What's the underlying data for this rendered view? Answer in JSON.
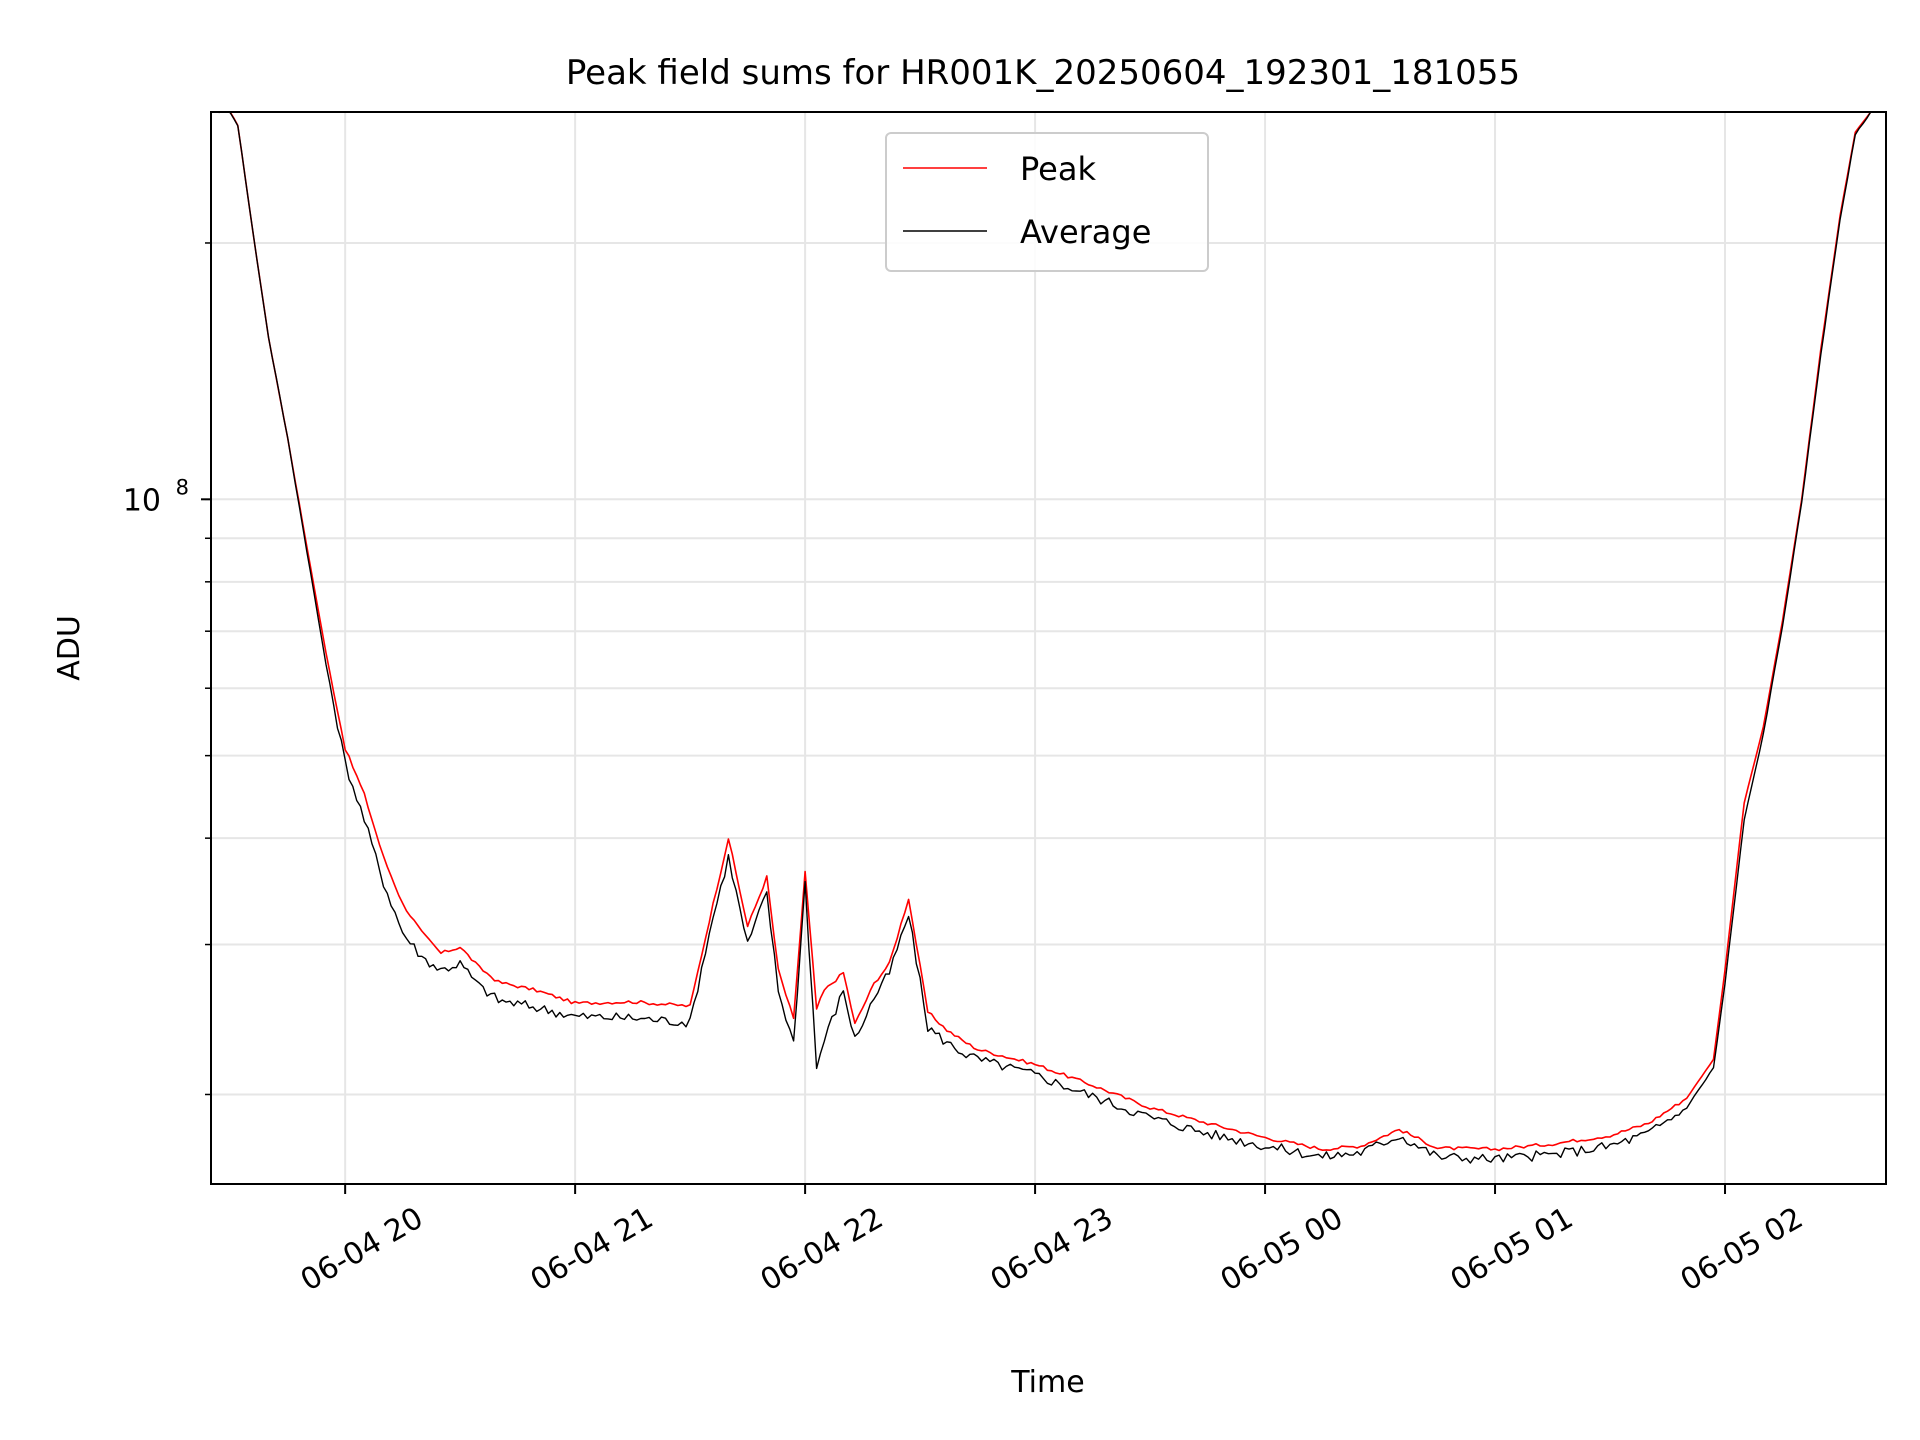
{
  "chart_data": {
    "type": "line",
    "title": "Peak field sums for HR001K_20250604_192301_181055",
    "xlabel": "Time",
    "ylabel": "ADU",
    "yscale": "log",
    "xlim": [
      "2025-06-04 19:25",
      "2025-06-05 02:42"
    ],
    "ylim": [
      15700000,
      285000000
    ],
    "ytick_labels": [
      {
        "value": 100000000,
        "base": "10",
        "exp": "8"
      }
    ],
    "xtick_labels": [
      "06-04 20",
      "06-04 21",
      "06-04 22",
      "06-04 23",
      "06-05 00",
      "06-05 01",
      "06-05 02"
    ],
    "xtick_values": [
      "2025-06-04 20:00",
      "2025-06-04 21:00",
      "2025-06-04 22:00",
      "2025-06-04 23:00",
      "2025-06-05 00:00",
      "2025-06-05 01:00",
      "2025-06-05 02:00"
    ],
    "grid": true,
    "legend_position": "upper center",
    "series": [
      {
        "name": "Peak",
        "color": "#ff0000",
        "x": [
          "2025-06-04 19:27",
          "2025-06-04 19:30",
          "2025-06-04 19:32",
          "2025-06-04 19:36",
          "2025-06-04 19:40",
          "2025-06-04 19:45",
          "2025-06-04 19:50",
          "2025-06-04 19:55",
          "2025-06-04 20:00",
          "2025-06-04 20:05",
          "2025-06-04 20:10",
          "2025-06-04 20:15",
          "2025-06-04 20:20",
          "2025-06-04 20:25",
          "2025-06-04 20:30",
          "2025-06-04 20:35",
          "2025-06-04 20:40",
          "2025-06-04 20:50",
          "2025-06-04 21:00",
          "2025-06-04 21:15",
          "2025-06-04 21:30",
          "2025-06-04 21:35",
          "2025-06-04 21:40",
          "2025-06-04 21:45",
          "2025-06-04 21:50",
          "2025-06-04 21:53",
          "2025-06-04 21:57",
          "2025-06-04 22:00",
          "2025-06-04 22:03",
          "2025-06-04 22:05",
          "2025-06-04 22:10",
          "2025-06-04 22:13",
          "2025-06-04 22:18",
          "2025-06-04 22:22",
          "2025-06-04 22:27",
          "2025-06-04 22:32",
          "2025-06-04 22:37",
          "2025-06-04 22:42",
          "2025-06-04 22:45",
          "2025-06-04 23:00",
          "2025-06-04 23:15",
          "2025-06-04 23:30",
          "2025-06-04 23:45",
          "2025-06-05 00:00",
          "2025-06-05 00:15",
          "2025-06-05 00:25",
          "2025-06-05 00:35",
          "2025-06-05 00:45",
          "2025-06-05 01:00",
          "2025-06-05 01:15",
          "2025-06-05 01:30",
          "2025-06-05 01:40",
          "2025-06-05 01:50",
          "2025-06-05 01:57",
          "2025-06-05 02:00",
          "2025-06-05 02:05",
          "2025-06-05 02:10",
          "2025-06-05 02:15",
          "2025-06-05 02:20",
          "2025-06-05 02:25",
          "2025-06-05 02:30",
          "2025-06-05 02:34",
          "2025-06-05 02:38"
        ],
        "y": [
          285000000,
          285000000,
          275000000,
          205000000,
          155000000,
          118000000,
          88000000,
          66000000,
          51000000,
          45000000,
          38000000,
          33500000,
          31000000,
          29300000,
          29800000,
          28200000,
          27100000,
          26500000,
          25600000,
          25700000,
          25400000,
          32000000,
          40000000,
          31500000,
          36000000,
          28000000,
          24500000,
          36500000,
          25200000,
          26500000,
          27800000,
          24200000,
          27000000,
          28500000,
          34000000,
          25000000,
          23800000,
          23000000,
          22600000,
          21700000,
          20500000,
          19300000,
          18500000,
          17800000,
          17250000,
          17400000,
          18200000,
          17300000,
          17250000,
          17500000,
          17900000,
          18500000,
          19800000,
          22000000,
          28000000,
          44000000,
          54000000,
          72000000,
          100000000,
          150000000,
          215000000,
          270000000,
          285000000
        ]
      },
      {
        "name": "Average",
        "color": "#000000",
        "x": [
          "2025-06-04 19:27",
          "2025-06-04 19:30",
          "2025-06-04 19:32",
          "2025-06-04 19:36",
          "2025-06-04 19:40",
          "2025-06-04 19:45",
          "2025-06-04 19:50",
          "2025-06-04 19:55",
          "2025-06-04 20:00",
          "2025-06-04 20:05",
          "2025-06-04 20:10",
          "2025-06-04 20:15",
          "2025-06-04 20:20",
          "2025-06-04 20:25",
          "2025-06-04 20:30",
          "2025-06-04 20:35",
          "2025-06-04 20:40",
          "2025-06-04 20:50",
          "2025-06-04 21:00",
          "2025-06-04 21:15",
          "2025-06-04 21:30",
          "2025-06-04 21:35",
          "2025-06-04 21:40",
          "2025-06-04 21:45",
          "2025-06-04 21:50",
          "2025-06-04 21:53",
          "2025-06-04 21:57",
          "2025-06-04 22:00",
          "2025-06-04 22:03",
          "2025-06-04 22:05",
          "2025-06-04 22:10",
          "2025-06-04 22:13",
          "2025-06-04 22:18",
          "2025-06-04 22:22",
          "2025-06-04 22:27",
          "2025-06-04 22:32",
          "2025-06-04 22:37",
          "2025-06-04 22:42",
          "2025-06-04 22:45",
          "2025-06-04 23:00",
          "2025-06-04 23:15",
          "2025-06-04 23:30",
          "2025-06-04 23:45",
          "2025-06-05 00:00",
          "2025-06-05 00:15",
          "2025-06-05 00:25",
          "2025-06-05 00:35",
          "2025-06-05 00:45",
          "2025-06-05 01:00",
          "2025-06-05 01:15",
          "2025-06-05 01:30",
          "2025-06-05 01:40",
          "2025-06-05 01:50",
          "2025-06-05 01:57",
          "2025-06-05 02:00",
          "2025-06-05 02:05",
          "2025-06-05 02:10",
          "2025-06-05 02:15",
          "2025-06-05 02:20",
          "2025-06-05 02:25",
          "2025-06-05 02:30",
          "2025-06-05 02:34",
          "2025-06-05 02:38"
        ],
        "y": [
          285000000,
          285000000,
          275000000,
          205000000,
          155000000,
          118000000,
          87000000,
          64000000,
          49000000,
          42000000,
          35500000,
          31000000,
          29000000,
          28000000,
          28500000,
          26800000,
          25800000,
          25300000,
          24700000,
          24600000,
          24300000,
          31000000,
          38000000,
          30000000,
          34500000,
          26500000,
          23000000,
          35500000,
          21500000,
          23200000,
          26500000,
          23200000,
          26000000,
          27800000,
          32500000,
          24000000,
          23000000,
          22300000,
          22000000,
          21100000,
          19900000,
          18800000,
          18000000,
          17400000,
          16900000,
          17100000,
          17900000,
          16900000,
          16800000,
          17000000,
          17400000,
          18000000,
          19300000,
          21500000,
          27000000,
          42000000,
          53000000,
          71000000,
          99000000,
          148000000,
          213000000,
          268000000,
          285000000
        ]
      }
    ]
  }
}
